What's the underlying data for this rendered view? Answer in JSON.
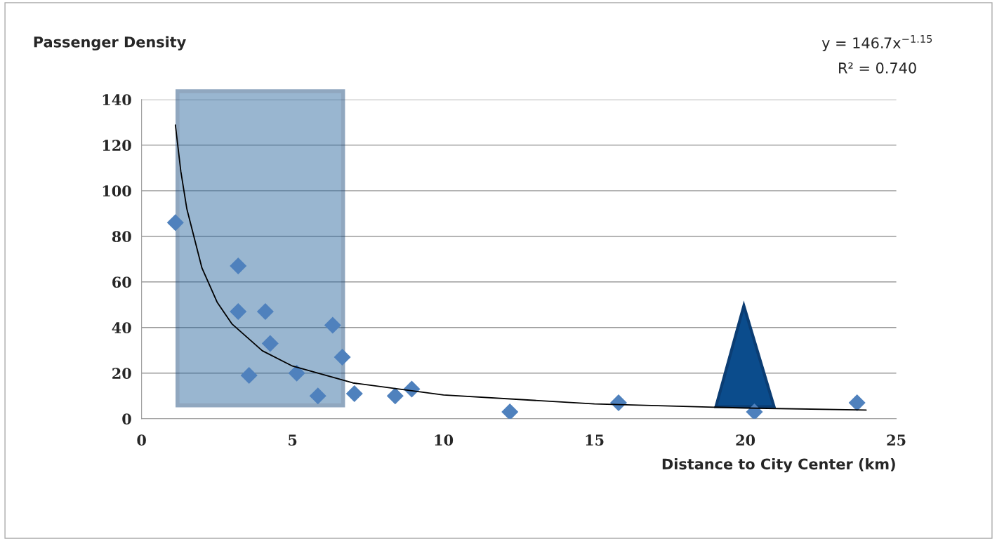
{
  "chart_data": {
    "type": "scatter",
    "ylabel": "Passenger Density",
    "xlabel": "Distance to City Center (km)",
    "xlim": [
      0,
      25
    ],
    "xticks": [
      0,
      5,
      10,
      15,
      20,
      25
    ],
    "ylim": [
      0,
      140
    ],
    "yticks": [
      0,
      20,
      40,
      60,
      80,
      100,
      120,
      140
    ],
    "grid": "y",
    "marker": "diamond",
    "series": [
      {
        "color": "#4f81bd",
        "x": [
          1.12,
          3.2,
          3.2,
          4.1,
          4.26,
          3.56,
          5.14,
          5.84,
          6.33,
          6.65,
          7.05,
          8.4,
          8.95,
          12.2,
          15.8,
          20.3,
          23.7
        ],
        "values": [
          86,
          67,
          47,
          47,
          33,
          19,
          20,
          10,
          41,
          27,
          11,
          10,
          13,
          3,
          7,
          3,
          7
        ]
      },
      {
        "type": "line",
        "marker": "none",
        "color": "#000000",
        "x": [
          1.12,
          1.3,
          1.5,
          2,
          2.5,
          3,
          4,
          5,
          7,
          10,
          15,
          20,
          24
        ],
        "values": [
          128.8,
          108.5,
          92.0,
          66.1,
          51.2,
          41.5,
          29.8,
          23.1,
          15.7,
          10.4,
          6.5,
          4.7,
          3.8
        ]
      }
    ],
    "annotations": [
      "y = 146.7x$^{−1.15}$",
      "R² = 0.740"
    ]
  }
}
